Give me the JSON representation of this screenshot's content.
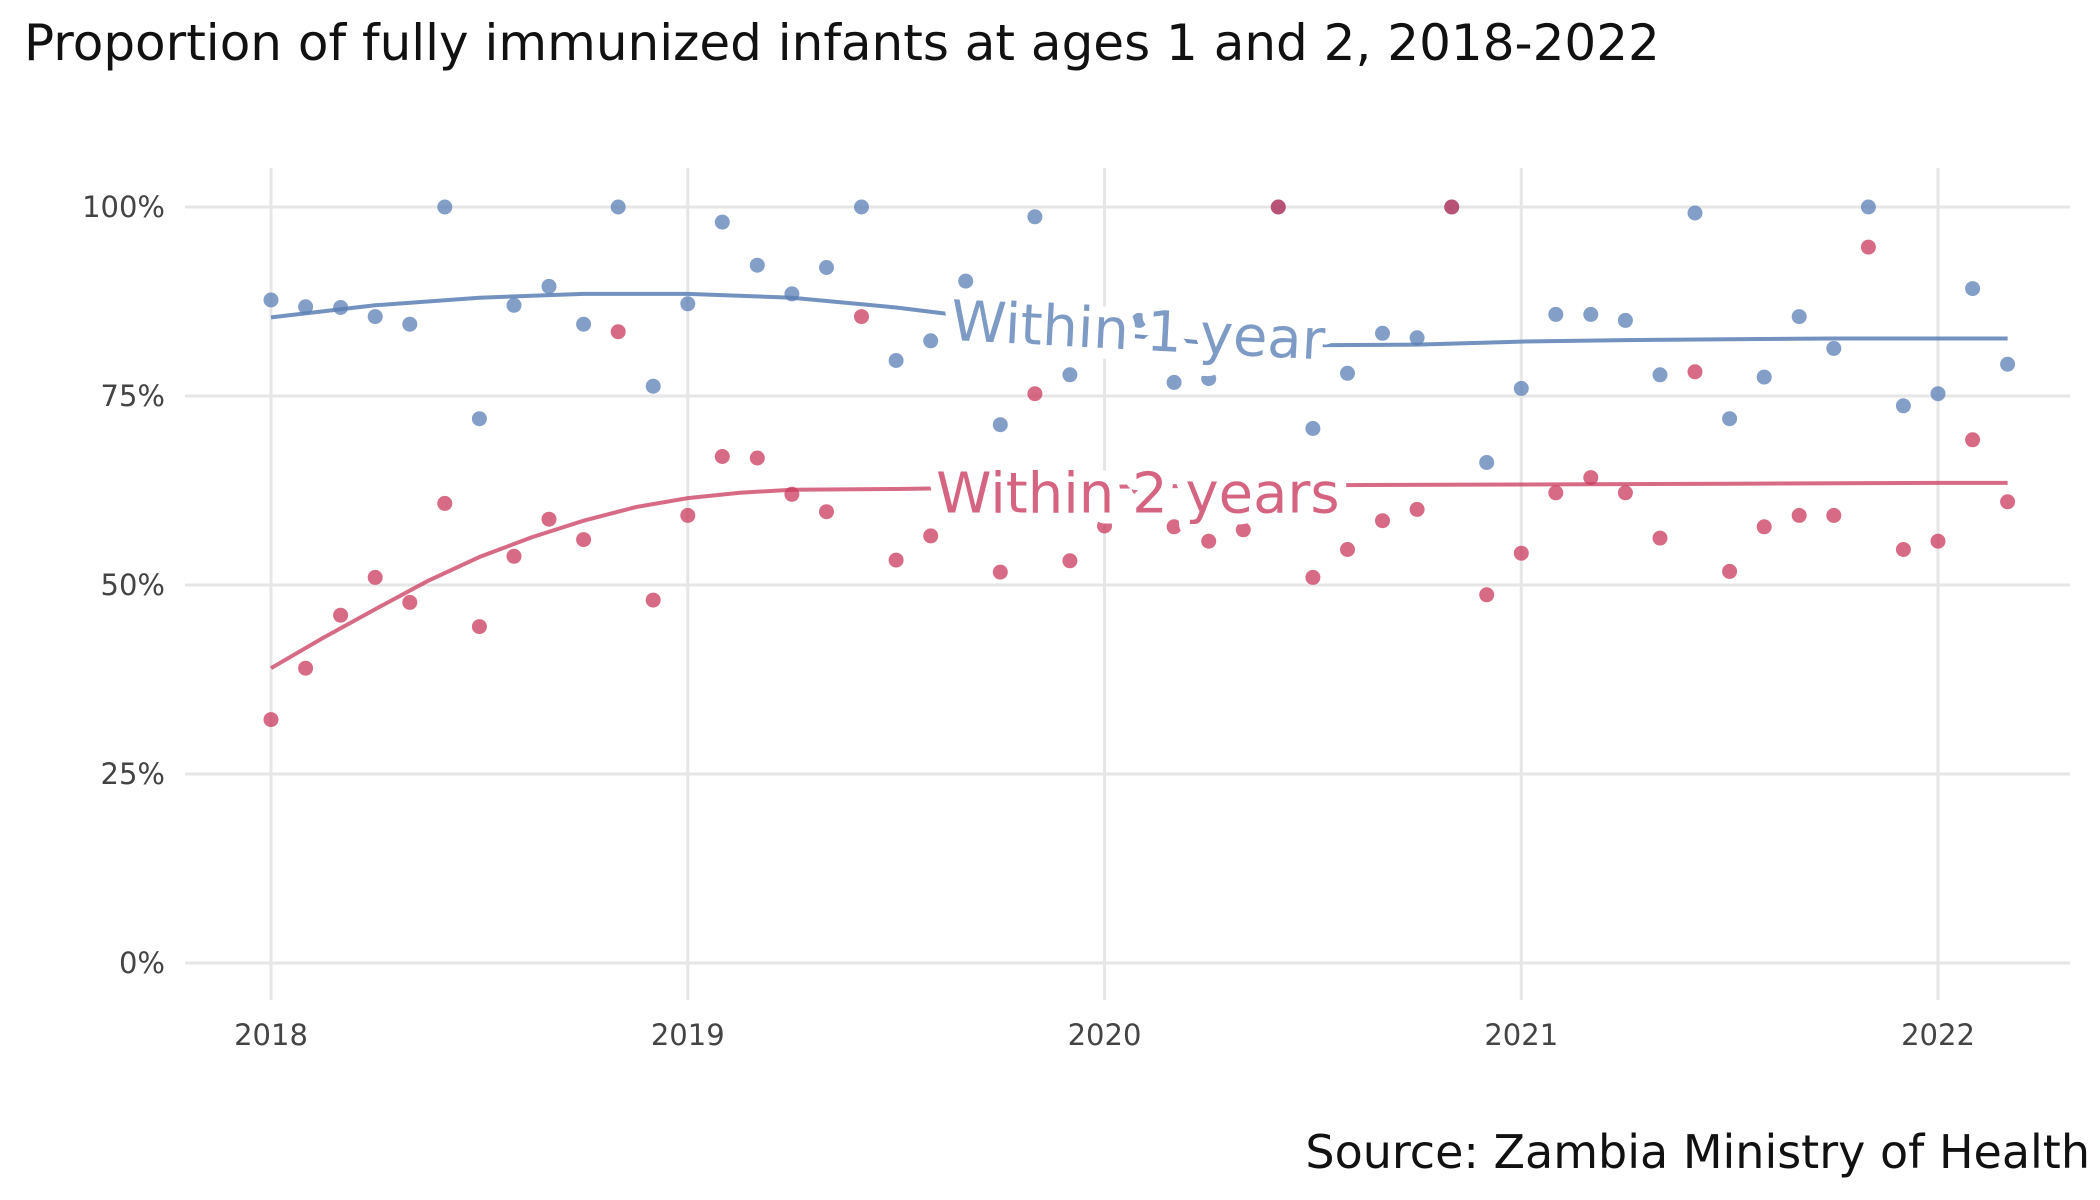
{
  "chart_data": {
    "type": "scatter",
    "title": "Proportion of fully immunized infants at ages 1 and 2, 2018-2022",
    "caption": "Source: Zambia Ministry of Health",
    "xlabel": "",
    "ylabel": "",
    "xlim": [
      2017.85,
      2022.35
    ],
    "ylim": [
      0,
      1
    ],
    "x_ticks": [
      2018,
      2019,
      2020,
      2021,
      2022
    ],
    "x_tick_labels": [
      "2018",
      "2019",
      "2020",
      "2021",
      "2022"
    ],
    "y_ticks": [
      0,
      0.25,
      0.5,
      0.75,
      1
    ],
    "y_tick_labels": [
      "0%",
      "25%",
      "50%",
      "75%",
      "100%"
    ],
    "grid": true,
    "series": [
      {
        "name": "Within 1 year",
        "color": "#5a7fb5",
        "points": [
          [
            2018.0,
            0.877
          ],
          [
            2018.083,
            0.868
          ],
          [
            2018.167,
            0.867
          ],
          [
            2018.25,
            0.855
          ],
          [
            2018.333,
            0.845
          ],
          [
            2018.417,
            1.0
          ],
          [
            2018.5,
            0.72
          ],
          [
            2018.583,
            0.87
          ],
          [
            2018.667,
            0.895
          ],
          [
            2018.75,
            0.845
          ],
          [
            2018.833,
            1.0
          ],
          [
            2018.917,
            0.763
          ],
          [
            2019.0,
            0.872
          ],
          [
            2019.083,
            0.98
          ],
          [
            2019.167,
            0.923
          ],
          [
            2019.25,
            0.885
          ],
          [
            2019.333,
            0.92
          ],
          [
            2019.417,
            1.0
          ],
          [
            2019.5,
            0.797
          ],
          [
            2019.583,
            0.823
          ],
          [
            2019.667,
            0.902
          ],
          [
            2019.75,
            0.712
          ],
          [
            2019.833,
            0.987
          ],
          [
            2019.917,
            0.778
          ],
          [
            2020.0,
            0.825
          ],
          [
            2020.083,
            0.85
          ],
          [
            2020.167,
            0.768
          ],
          [
            2020.25,
            0.773
          ],
          [
            2020.333,
            0.812
          ],
          [
            2020.417,
            1.0
          ],
          [
            2020.5,
            0.707
          ],
          [
            2020.583,
            0.78
          ],
          [
            2020.667,
            0.833
          ],
          [
            2020.75,
            0.827
          ],
          [
            2020.833,
            1.0
          ],
          [
            2020.917,
            0.662
          ],
          [
            2021.0,
            0.76
          ],
          [
            2021.083,
            0.858
          ],
          [
            2021.167,
            0.858
          ],
          [
            2021.25,
            0.85
          ],
          [
            2021.333,
            0.778
          ],
          [
            2021.417,
            0.992
          ],
          [
            2021.5,
            0.72
          ],
          [
            2021.583,
            0.775
          ],
          [
            2021.667,
            0.855
          ],
          [
            2021.75,
            0.813
          ],
          [
            2021.833,
            1.0
          ],
          [
            2021.917,
            0.737
          ],
          [
            2022.0,
            0.753
          ],
          [
            2022.083,
            0.892
          ],
          [
            2022.167,
            0.792
          ]
        ],
        "trend": [
          [
            2018.0,
            0.854
          ],
          [
            2018.25,
            0.87
          ],
          [
            2018.5,
            0.88
          ],
          [
            2018.75,
            0.885
          ],
          [
            2019.0,
            0.885
          ],
          [
            2019.25,
            0.88
          ],
          [
            2019.5,
            0.867
          ],
          [
            2019.75,
            0.85
          ],
          [
            2020.0,
            0.833
          ],
          [
            2020.25,
            0.82
          ],
          [
            2020.5,
            0.817
          ],
          [
            2020.75,
            0.818
          ],
          [
            2021.0,
            0.822
          ],
          [
            2021.25,
            0.824
          ],
          [
            2021.5,
            0.825
          ],
          [
            2021.75,
            0.826
          ],
          [
            2022.0,
            0.826
          ],
          [
            2022.167,
            0.826
          ]
        ],
        "label_x": 2020.08,
        "label_y": 0.835
      },
      {
        "name": "Within 2 years",
        "color": "#c9395c",
        "points": [
          [
            2018.0,
            0.322
          ],
          [
            2018.083,
            0.39
          ],
          [
            2018.167,
            0.46
          ],
          [
            2018.25,
            0.51
          ],
          [
            2018.333,
            0.477
          ],
          [
            2018.417,
            0.608
          ],
          [
            2018.5,
            0.445
          ],
          [
            2018.583,
            0.538
          ],
          [
            2018.667,
            0.587
          ],
          [
            2018.75,
            0.56
          ],
          [
            2018.833,
            0.835
          ],
          [
            2018.917,
            0.48
          ],
          [
            2019.0,
            0.592
          ],
          [
            2019.083,
            0.67
          ],
          [
            2019.167,
            0.668
          ],
          [
            2019.25,
            0.62
          ],
          [
            2019.333,
            0.597
          ],
          [
            2019.417,
            0.855
          ],
          [
            2019.5,
            0.533
          ],
          [
            2019.583,
            0.565
          ],
          [
            2019.667,
            0.632
          ],
          [
            2019.75,
            0.517
          ],
          [
            2019.833,
            0.753
          ],
          [
            2019.917,
            0.532
          ],
          [
            2020.0,
            0.578
          ],
          [
            2020.083,
            0.628
          ],
          [
            2020.167,
            0.577
          ],
          [
            2020.25,
            0.558
          ],
          [
            2020.333,
            0.573
          ],
          [
            2020.417,
            1.0
          ],
          [
            2020.5,
            0.51
          ],
          [
            2020.583,
            0.547
          ],
          [
            2020.667,
            0.585
          ],
          [
            2020.75,
            0.6
          ],
          [
            2020.833,
            1.0
          ],
          [
            2020.917,
            0.487
          ],
          [
            2021.0,
            0.542
          ],
          [
            2021.083,
            0.622
          ],
          [
            2021.167,
            0.642
          ],
          [
            2021.25,
            0.622
          ],
          [
            2021.333,
            0.562
          ],
          [
            2021.417,
            0.782
          ],
          [
            2021.5,
            0.518
          ],
          [
            2021.583,
            0.577
          ],
          [
            2021.667,
            0.592
          ],
          [
            2021.75,
            0.592
          ],
          [
            2021.833,
            0.947
          ],
          [
            2021.917,
            0.547
          ],
          [
            2022.0,
            0.558
          ],
          [
            2022.083,
            0.692
          ],
          [
            2022.167,
            0.61
          ]
        ],
        "trend": [
          [
            2018.0,
            0.39
          ],
          [
            2018.125,
            0.43
          ],
          [
            2018.25,
            0.468
          ],
          [
            2018.375,
            0.505
          ],
          [
            2018.5,
            0.537
          ],
          [
            2018.625,
            0.563
          ],
          [
            2018.75,
            0.585
          ],
          [
            2018.875,
            0.603
          ],
          [
            2019.0,
            0.615
          ],
          [
            2019.125,
            0.622
          ],
          [
            2019.25,
            0.626
          ],
          [
            2019.5,
            0.627
          ],
          [
            2019.75,
            0.629
          ],
          [
            2020.0,
            0.63
          ],
          [
            2020.5,
            0.632
          ],
          [
            2021.0,
            0.633
          ],
          [
            2021.5,
            0.634
          ],
          [
            2022.0,
            0.635
          ],
          [
            2022.167,
            0.635
          ]
        ],
        "label_x": 2020.08,
        "label_y": 0.62
      }
    ]
  }
}
